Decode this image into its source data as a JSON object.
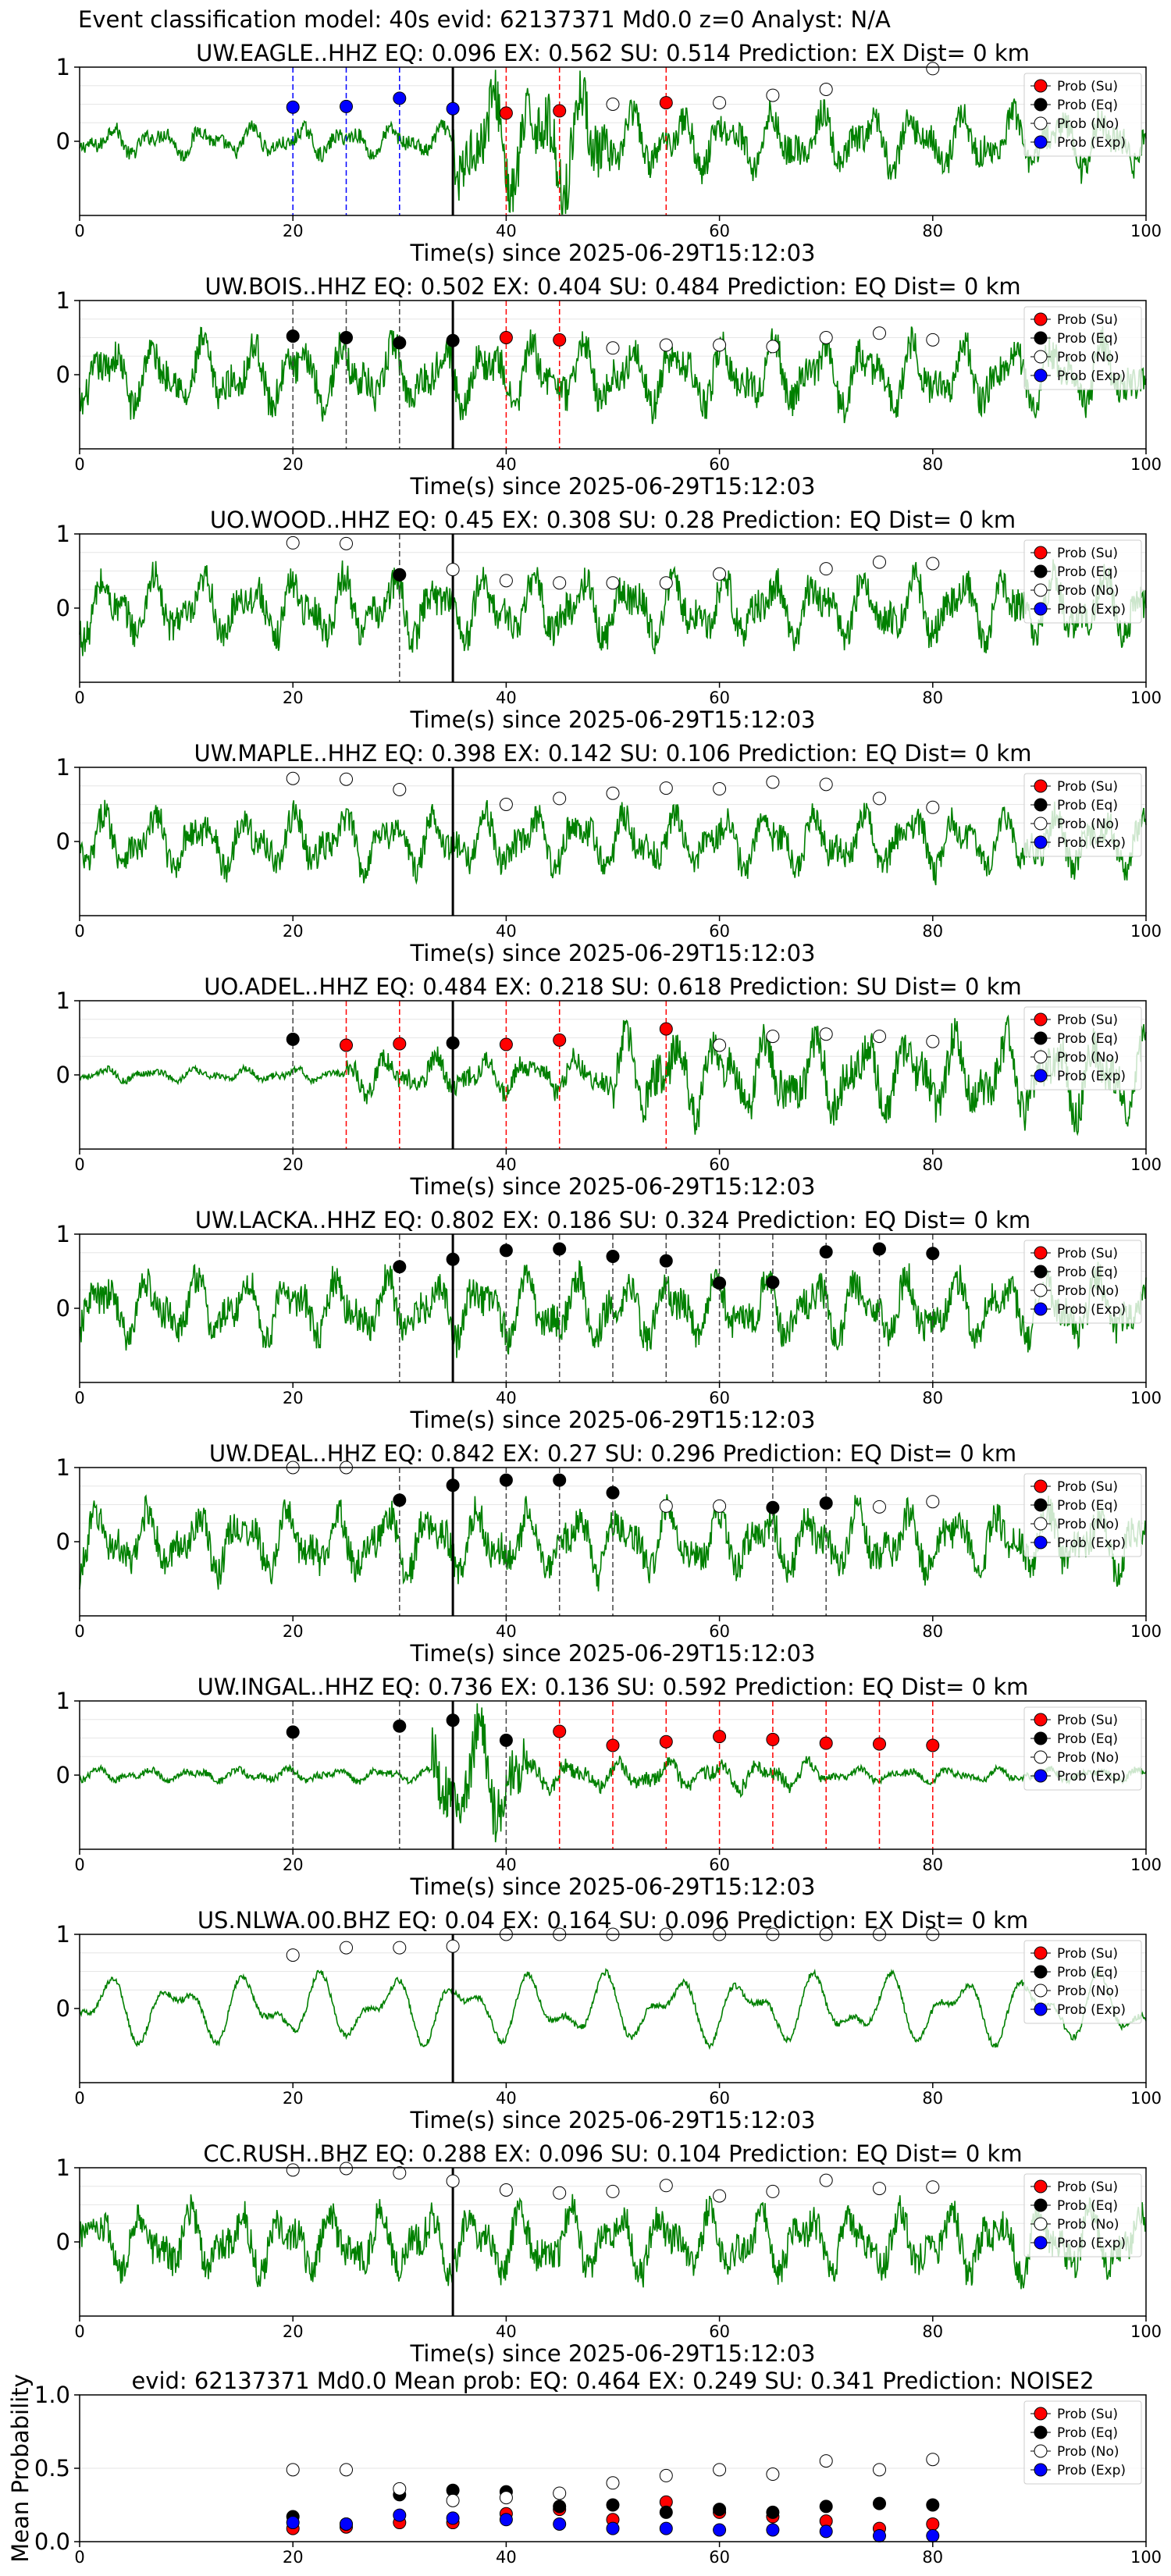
{
  "figure": {
    "suptitle": "Event classification model: 40s evid: 62137371 Md0.0 z=0 Analyst: N/A"
  },
  "legend_labels": [
    "Prob (Su)",
    "Prob (Eq)",
    "Prob (No)",
    "Prob (Exp)"
  ],
  "colors": {
    "su": "#ff0000",
    "eq": "#000000",
    "no": "#ffffff",
    "exp": "#0000ff",
    "trace": "#008000"
  },
  "chart_data": [
    {
      "type": "line",
      "title": "UW.EAGLE..HHZ   EQ: 0.096  EX: 0.562  SU: 0.514   Prediction: EX    Dist= 0 km",
      "xlabel": "Time(s) since 2025-06-29T15:12:03",
      "xlim": [
        0,
        100
      ],
      "ylim": [
        -1,
        1
      ],
      "yticks": [
        0,
        1
      ],
      "xticks": [
        0,
        20,
        40,
        60,
        80,
        100
      ],
      "trace_style": "burst",
      "pick_time": 35,
      "points": [
        {
          "t": 20,
          "cls": "exp",
          "p": 0.46
        },
        {
          "t": 25,
          "cls": "exp",
          "p": 0.47
        },
        {
          "t": 30,
          "cls": "exp",
          "p": 0.58
        },
        {
          "t": 35,
          "cls": "exp",
          "p": 0.44
        },
        {
          "t": 40,
          "cls": "su",
          "p": 0.38
        },
        {
          "t": 45,
          "cls": "su",
          "p": 0.41
        },
        {
          "t": 50,
          "cls": "no",
          "p": 0.5
        },
        {
          "t": 55,
          "cls": "su",
          "p": 0.52
        },
        {
          "t": 60,
          "cls": "no",
          "p": 0.52
        },
        {
          "t": 65,
          "cls": "no",
          "p": 0.62
        },
        {
          "t": 70,
          "cls": "no",
          "p": 0.7
        },
        {
          "t": 80,
          "cls": "no",
          "p": 0.98
        }
      ]
    },
    {
      "type": "line",
      "title": "UW.BOIS..HHZ   EQ: 0.502  EX: 0.404  SU: 0.484   Prediction: EQ    Dist= 0 km",
      "xlabel": "Time(s) since 2025-06-29T15:12:03",
      "xlim": [
        0,
        100
      ],
      "ylim": [
        -1,
        1
      ],
      "yticks": [
        0,
        1
      ],
      "xticks": [
        0,
        20,
        40,
        60,
        80,
        100
      ],
      "trace_style": "wavy",
      "pick_time": 35,
      "points": [
        {
          "t": 20,
          "cls": "eq",
          "p": 0.52
        },
        {
          "t": 25,
          "cls": "eq",
          "p": 0.5
        },
        {
          "t": 30,
          "cls": "eq",
          "p": 0.43
        },
        {
          "t": 35,
          "cls": "eq",
          "p": 0.46
        },
        {
          "t": 40,
          "cls": "su",
          "p": 0.5
        },
        {
          "t": 45,
          "cls": "su",
          "p": 0.47
        },
        {
          "t": 50,
          "cls": "no",
          "p": 0.36
        },
        {
          "t": 55,
          "cls": "no",
          "p": 0.4
        },
        {
          "t": 60,
          "cls": "no",
          "p": 0.4
        },
        {
          "t": 65,
          "cls": "no",
          "p": 0.38
        },
        {
          "t": 70,
          "cls": "no",
          "p": 0.5
        },
        {
          "t": 75,
          "cls": "no",
          "p": 0.56
        },
        {
          "t": 80,
          "cls": "no",
          "p": 0.47
        }
      ]
    },
    {
      "type": "line",
      "title": "UO.WOOD..HHZ   EQ: 0.45  EX: 0.308  SU: 0.28   Prediction: EQ    Dist= 0 km",
      "xlabel": "Time(s) since 2025-06-29T15:12:03",
      "xlim": [
        0,
        100
      ],
      "ylim": [
        -1,
        1
      ],
      "yticks": [
        0,
        1
      ],
      "xticks": [
        0,
        20,
        40,
        60,
        80,
        100
      ],
      "trace_style": "wavy",
      "pick_time": 35,
      "points": [
        {
          "t": 20,
          "cls": "no",
          "p": 0.88
        },
        {
          "t": 25,
          "cls": "no",
          "p": 0.87
        },
        {
          "t": 30,
          "cls": "eq",
          "p": 0.45
        },
        {
          "t": 35,
          "cls": "no",
          "p": 0.52
        },
        {
          "t": 40,
          "cls": "no",
          "p": 0.37
        },
        {
          "t": 45,
          "cls": "no",
          "p": 0.34
        },
        {
          "t": 50,
          "cls": "no",
          "p": 0.34
        },
        {
          "t": 55,
          "cls": "no",
          "p": 0.34
        },
        {
          "t": 60,
          "cls": "no",
          "p": 0.46
        },
        {
          "t": 70,
          "cls": "no",
          "p": 0.53
        },
        {
          "t": 75,
          "cls": "no",
          "p": 0.62
        },
        {
          "t": 80,
          "cls": "no",
          "p": 0.6
        }
      ]
    },
    {
      "type": "line",
      "title": "UW.MAPLE..HHZ   EQ: 0.398  EX: 0.142  SU: 0.106   Prediction: EQ    Dist= 0 km",
      "xlabel": "Time(s) since 2025-06-29T15:12:03",
      "xlim": [
        0,
        100
      ],
      "ylim": [
        -1,
        1
      ],
      "yticks": [
        0,
        1
      ],
      "xticks": [
        0,
        20,
        40,
        60,
        80,
        100
      ],
      "trace_style": "noisy",
      "pick_time": 35,
      "points": [
        {
          "t": 20,
          "cls": "no",
          "p": 0.85
        },
        {
          "t": 25,
          "cls": "no",
          "p": 0.84
        },
        {
          "t": 30,
          "cls": "no",
          "p": 0.7
        },
        {
          "t": 40,
          "cls": "no",
          "p": 0.5
        },
        {
          "t": 45,
          "cls": "no",
          "p": 0.58
        },
        {
          "t": 50,
          "cls": "no",
          "p": 0.65
        },
        {
          "t": 55,
          "cls": "no",
          "p": 0.72
        },
        {
          "t": 60,
          "cls": "no",
          "p": 0.71
        },
        {
          "t": 65,
          "cls": "no",
          "p": 0.8
        },
        {
          "t": 70,
          "cls": "no",
          "p": 0.77
        },
        {
          "t": 75,
          "cls": "no",
          "p": 0.58
        },
        {
          "t": 80,
          "cls": "no",
          "p": 0.46
        }
      ]
    },
    {
      "type": "line",
      "title": "UO.ADEL..HHZ   EQ: 0.484  EX: 0.218  SU: 0.618   Prediction: SU    Dist= 0 km",
      "xlabel": "Time(s) since 2025-06-29T15:12:03",
      "xlim": [
        0,
        100
      ],
      "ylim": [
        -1,
        1
      ],
      "yticks": [
        0,
        1
      ],
      "xticks": [
        0,
        20,
        40,
        60,
        80,
        100
      ],
      "trace_style": "growing",
      "pick_time": 35,
      "points": [
        {
          "t": 20,
          "cls": "eq",
          "p": 0.48
        },
        {
          "t": 25,
          "cls": "su",
          "p": 0.4
        },
        {
          "t": 30,
          "cls": "su",
          "p": 0.42
        },
        {
          "t": 35,
          "cls": "eq",
          "p": 0.43
        },
        {
          "t": 40,
          "cls": "su",
          "p": 0.41
        },
        {
          "t": 45,
          "cls": "su",
          "p": 0.47
        },
        {
          "t": 55,
          "cls": "su",
          "p": 0.62
        },
        {
          "t": 60,
          "cls": "no",
          "p": 0.4
        },
        {
          "t": 65,
          "cls": "no",
          "p": 0.52
        },
        {
          "t": 70,
          "cls": "no",
          "p": 0.55
        },
        {
          "t": 75,
          "cls": "no",
          "p": 0.52
        },
        {
          "t": 80,
          "cls": "no",
          "p": 0.45
        }
      ]
    },
    {
      "type": "line",
      "title": "UW.LACKA..HHZ   EQ: 0.802  EX: 0.186  SU: 0.324   Prediction: EQ    Dist= 0 km",
      "xlabel": "Time(s) since 2025-06-29T15:12:03",
      "xlim": [
        0,
        100
      ],
      "ylim": [
        -1,
        1
      ],
      "yticks": [
        0,
        1
      ],
      "xticks": [
        0,
        20,
        40,
        60,
        80,
        100
      ],
      "trace_style": "wavy",
      "pick_time": 35,
      "points": [
        {
          "t": 30,
          "cls": "eq",
          "p": 0.56
        },
        {
          "t": 35,
          "cls": "eq",
          "p": 0.66
        },
        {
          "t": 40,
          "cls": "eq",
          "p": 0.78
        },
        {
          "t": 45,
          "cls": "eq",
          "p": 0.8
        },
        {
          "t": 50,
          "cls": "eq",
          "p": 0.7
        },
        {
          "t": 55,
          "cls": "eq",
          "p": 0.64
        },
        {
          "t": 60,
          "cls": "eq",
          "p": 0.34
        },
        {
          "t": 65,
          "cls": "eq",
          "p": 0.35
        },
        {
          "t": 70,
          "cls": "eq",
          "p": 0.76
        },
        {
          "t": 75,
          "cls": "eq",
          "p": 0.8
        },
        {
          "t": 80,
          "cls": "eq",
          "p": 0.74
        }
      ]
    },
    {
      "type": "line",
      "title": "UW.DEAL..HHZ   EQ: 0.842  EX: 0.27  SU: 0.296   Prediction: EQ    Dist= 0 km",
      "xlabel": "Time(s) since 2025-06-29T15:12:03",
      "xlim": [
        0,
        100
      ],
      "ylim": [
        -1,
        1
      ],
      "yticks": [
        0,
        1
      ],
      "xticks": [
        0,
        20,
        40,
        60,
        80,
        100
      ],
      "trace_style": "wavy",
      "pick_time": 35,
      "points": [
        {
          "t": 20,
          "cls": "no",
          "p": 1.0
        },
        {
          "t": 25,
          "cls": "no",
          "p": 1.0
        },
        {
          "t": 30,
          "cls": "eq",
          "p": 0.56
        },
        {
          "t": 35,
          "cls": "eq",
          "p": 0.76
        },
        {
          "t": 40,
          "cls": "eq",
          "p": 0.83
        },
        {
          "t": 45,
          "cls": "eq",
          "p": 0.83
        },
        {
          "t": 50,
          "cls": "eq",
          "p": 0.66
        },
        {
          "t": 55,
          "cls": "no",
          "p": 0.48
        },
        {
          "t": 60,
          "cls": "no",
          "p": 0.48
        },
        {
          "t": 65,
          "cls": "eq",
          "p": 0.46
        },
        {
          "t": 70,
          "cls": "eq",
          "p": 0.52
        },
        {
          "t": 75,
          "cls": "no",
          "p": 0.47
        },
        {
          "t": 80,
          "cls": "no",
          "p": 0.54
        }
      ]
    },
    {
      "type": "line",
      "title": "UW.INGAL..HHZ   EQ: 0.736  EX: 0.136  SU: 0.592   Prediction: EQ    Dist= 0 km",
      "xlabel": "Time(s) since 2025-06-29T15:12:03",
      "xlim": [
        0,
        100
      ],
      "ylim": [
        -1,
        1
      ],
      "yticks": [
        0,
        1
      ],
      "xticks": [
        0,
        20,
        40,
        60,
        80,
        100
      ],
      "trace_style": "quiet_burst",
      "pick_time": 35,
      "points": [
        {
          "t": 20,
          "cls": "eq",
          "p": 0.58
        },
        {
          "t": 30,
          "cls": "eq",
          "p": 0.66
        },
        {
          "t": 35,
          "cls": "eq",
          "p": 0.74
        },
        {
          "t": 40,
          "cls": "eq",
          "p": 0.47
        },
        {
          "t": 45,
          "cls": "su",
          "p": 0.59
        },
        {
          "t": 50,
          "cls": "su",
          "p": 0.4
        },
        {
          "t": 55,
          "cls": "su",
          "p": 0.45
        },
        {
          "t": 60,
          "cls": "su",
          "p": 0.52
        },
        {
          "t": 65,
          "cls": "su",
          "p": 0.48
        },
        {
          "t": 70,
          "cls": "su",
          "p": 0.43
        },
        {
          "t": 75,
          "cls": "su",
          "p": 0.42
        },
        {
          "t": 80,
          "cls": "su",
          "p": 0.4
        }
      ]
    },
    {
      "type": "line",
      "title": "US.NLWA.00.BHZ   EQ: 0.04  EX: 0.164  SU: 0.096   Prediction: EX    Dist= 0 km",
      "xlabel": "Time(s) since 2025-06-29T15:12:03",
      "xlim": [
        0,
        100
      ],
      "ylim": [
        -1,
        1
      ],
      "yticks": [
        0,
        1
      ],
      "xticks": [
        0,
        20,
        40,
        60,
        80,
        100
      ],
      "trace_style": "smooth",
      "pick_time": 35,
      "points": [
        {
          "t": 20,
          "cls": "no",
          "p": 0.72
        },
        {
          "t": 25,
          "cls": "no",
          "p": 0.82
        },
        {
          "t": 30,
          "cls": "no",
          "p": 0.82
        },
        {
          "t": 35,
          "cls": "no",
          "p": 0.84
        },
        {
          "t": 40,
          "cls": "no",
          "p": 1.0
        },
        {
          "t": 45,
          "cls": "no",
          "p": 1.0
        },
        {
          "t": 50,
          "cls": "no",
          "p": 1.0
        },
        {
          "t": 55,
          "cls": "no",
          "p": 1.0
        },
        {
          "t": 60,
          "cls": "no",
          "p": 1.0
        },
        {
          "t": 65,
          "cls": "no",
          "p": 1.0
        },
        {
          "t": 70,
          "cls": "no",
          "p": 1.0
        },
        {
          "t": 75,
          "cls": "no",
          "p": 1.0
        },
        {
          "t": 80,
          "cls": "no",
          "p": 1.0
        }
      ]
    },
    {
      "type": "line",
      "title": "CC.RUSH..BHZ   EQ: 0.288  EX: 0.096  SU: 0.104   Prediction: EQ    Dist= 0 km",
      "xlabel": "Time(s) since 2025-06-29T15:12:03",
      "xlim": [
        0,
        100
      ],
      "ylim": [
        -1,
        1
      ],
      "yticks": [
        0,
        1
      ],
      "xticks": [
        0,
        20,
        40,
        60,
        80,
        100
      ],
      "trace_style": "wavy",
      "pick_time": 35,
      "points": [
        {
          "t": 20,
          "cls": "no",
          "p": 0.97
        },
        {
          "t": 25,
          "cls": "no",
          "p": 0.99
        },
        {
          "t": 30,
          "cls": "no",
          "p": 0.93
        },
        {
          "t": 35,
          "cls": "no",
          "p": 0.82
        },
        {
          "t": 40,
          "cls": "no",
          "p": 0.7
        },
        {
          "t": 45,
          "cls": "no",
          "p": 0.66
        },
        {
          "t": 50,
          "cls": "no",
          "p": 0.68
        },
        {
          "t": 55,
          "cls": "no",
          "p": 0.76
        },
        {
          "t": 60,
          "cls": "no",
          "p": 0.62
        },
        {
          "t": 65,
          "cls": "no",
          "p": 0.68
        },
        {
          "t": 70,
          "cls": "no",
          "p": 0.83
        },
        {
          "t": 75,
          "cls": "no",
          "p": 0.72
        },
        {
          "t": 80,
          "cls": "no",
          "p": 0.74
        }
      ]
    },
    {
      "type": "scatter",
      "title": "evid: 62137371  Md0.0   Mean prob:   EQ: 0.464  EX: 0.249  SU: 0.341   Prediction: NOISE2",
      "ylabel": "Mean Probability",
      "xlim": [
        0,
        100
      ],
      "ylim": [
        0,
        1.0
      ],
      "yticks": [
        0.0,
        0.5,
        1.0
      ],
      "xticks": [
        0,
        20,
        40,
        60,
        80,
        100
      ],
      "x": [
        20,
        25,
        30,
        35,
        40,
        45,
        50,
        55,
        60,
        65,
        70,
        75,
        80
      ],
      "series": [
        {
          "name": "Prob (Su)",
          "cls": "su",
          "values": [
            0.09,
            0.1,
            0.13,
            0.13,
            0.19,
            0.22,
            0.15,
            0.27,
            0.2,
            0.17,
            0.14,
            0.09,
            0.12
          ]
        },
        {
          "name": "Prob (Eq)",
          "cls": "eq",
          "values": [
            0.17,
            0.12,
            0.32,
            0.35,
            0.34,
            0.24,
            0.25,
            0.2,
            0.22,
            0.2,
            0.24,
            0.26,
            0.25
          ]
        },
        {
          "name": "Prob (No)",
          "cls": "no",
          "values": [
            0.49,
            0.49,
            0.36,
            0.28,
            0.3,
            0.33,
            0.4,
            0.45,
            0.49,
            0.46,
            0.55,
            0.49,
            0.56
          ]
        },
        {
          "name": "Prob (Exp)",
          "cls": "exp",
          "values": [
            0.13,
            0.12,
            0.18,
            0.16,
            0.15,
            0.12,
            0.09,
            0.09,
            0.08,
            0.08,
            0.07,
            0.04,
            0.04
          ]
        }
      ]
    }
  ]
}
